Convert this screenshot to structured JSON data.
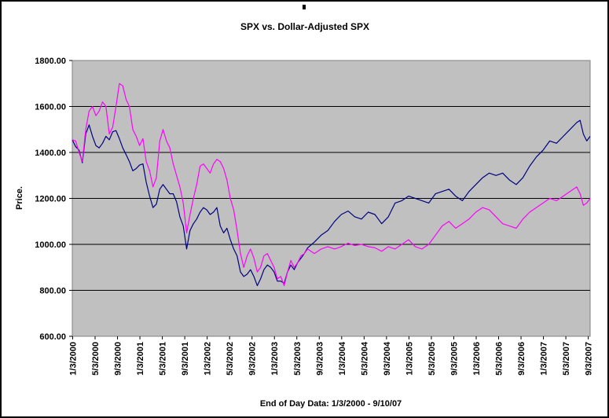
{
  "chart_data": {
    "type": "line",
    "title": "SPX vs. Dollar-Adjusted SPX",
    "xlabel": "End of Day Data: 1/3/2000 - 9/10/07",
    "ylabel": "Price.",
    "ylim": [
      600,
      1800
    ],
    "grid": true,
    "legend": "none",
    "y_ticks": [
      "600.00",
      "800.00",
      "1000.00",
      "1200.00",
      "1400.00",
      "1600.00",
      "1800.00"
    ],
    "x_ticks": [
      "1/3/2000",
      "5/3/2000",
      "9/3/2000",
      "1/3/2001",
      "5/3/2001",
      "9/3/2001",
      "1/3/2002",
      "5/3/2002",
      "9/3/2002",
      "1/3/2003",
      "5/3/2003",
      "9/3/2003",
      "1/3/2004",
      "5/3/2004",
      "9/3/2004",
      "1/3/2005",
      "5/3/2005",
      "9/3/2005",
      "1/3/2006",
      "5/3/2006",
      "9/3/2006",
      "1/3/2007",
      "5/3/2007",
      "9/3/2007"
    ],
    "colors": {
      "plot_bg": "#c0c0c0",
      "grid": "#000000"
    },
    "series": [
      {
        "color": "#000080",
        "x": [
          2000.0,
          2000.05,
          2000.1,
          2000.15,
          2000.2,
          2000.25,
          2000.3,
          2000.35,
          2000.4,
          2000.45,
          2000.5,
          2000.55,
          2000.6,
          2000.65,
          2000.7,
          2000.75,
          2000.8,
          2000.85,
          2000.9,
          2000.95,
          2001.0,
          2001.05,
          2001.1,
          2001.15,
          2001.2,
          2001.25,
          2001.3,
          2001.35,
          2001.4,
          2001.45,
          2001.5,
          2001.55,
          2001.6,
          2001.65,
          2001.7,
          2001.75,
          2001.8,
          2001.85,
          2001.9,
          2001.95,
          2002.0,
          2002.05,
          2002.1,
          2002.15,
          2002.2,
          2002.25,
          2002.3,
          2002.35,
          2002.4,
          2002.45,
          2002.5,
          2002.55,
          2002.6,
          2002.65,
          2002.7,
          2002.75,
          2002.8,
          2002.85,
          2002.9,
          2002.95,
          2003.0,
          2003.05,
          2003.1,
          2003.15,
          2003.2,
          2003.25,
          2003.3,
          2003.35,
          2003.4,
          2003.45,
          2003.5,
          2003.6,
          2003.7,
          2003.8,
          2003.9,
          2004.0,
          2004.1,
          2004.2,
          2004.3,
          2004.4,
          2004.5,
          2004.6,
          2004.7,
          2004.8,
          2004.9,
          2005.0,
          2005.1,
          2005.2,
          2005.3,
          2005.4,
          2005.5,
          2005.6,
          2005.7,
          2005.8,
          2005.9,
          2006.0,
          2006.1,
          2006.2,
          2006.3,
          2006.4,
          2006.5,
          2006.6,
          2006.7,
          2006.8,
          2006.9,
          2007.0,
          2007.1,
          2007.2,
          2007.3,
          2007.4,
          2007.5,
          2007.55,
          2007.6,
          2007.65,
          2007.7
        ],
        "y": [
          1455,
          1425,
          1410,
          1355,
          1480,
          1520,
          1470,
          1430,
          1420,
          1440,
          1470,
          1455,
          1490,
          1495,
          1460,
          1420,
          1390,
          1360,
          1320,
          1330,
          1345,
          1350,
          1270,
          1210,
          1160,
          1175,
          1240,
          1260,
          1240,
          1220,
          1220,
          1185,
          1120,
          1080,
          980,
          1060,
          1090,
          1110,
          1140,
          1160,
          1150,
          1130,
          1140,
          1160,
          1080,
          1050,
          1070,
          1020,
          980,
          950,
          880,
          860,
          870,
          890,
          860,
          820,
          850,
          890,
          910,
          900,
          880,
          840,
          840,
          830,
          880,
          910,
          890,
          920,
          940,
          960,
          985,
          1010,
          1040,
          1060,
          1100,
          1130,
          1145,
          1120,
          1110,
          1140,
          1130,
          1090,
          1120,
          1180,
          1190,
          1210,
          1200,
          1190,
          1180,
          1220,
          1230,
          1240,
          1210,
          1190,
          1230,
          1260,
          1290,
          1310,
          1300,
          1310,
          1280,
          1260,
          1290,
          1340,
          1380,
          1410,
          1450,
          1440,
          1470,
          1500,
          1530,
          1540,
          1480,
          1450,
          1470
        ]
      },
      {
        "color": "#ff00ff",
        "x": [
          2000.0,
          2000.05,
          2000.1,
          2000.15,
          2000.2,
          2000.25,
          2000.3,
          2000.35,
          2000.4,
          2000.45,
          2000.5,
          2000.55,
          2000.6,
          2000.65,
          2000.7,
          2000.75,
          2000.8,
          2000.85,
          2000.9,
          2000.95,
          2001.0,
          2001.05,
          2001.1,
          2001.15,
          2001.2,
          2001.25,
          2001.3,
          2001.35,
          2001.4,
          2001.45,
          2001.5,
          2001.55,
          2001.6,
          2001.65,
          2001.7,
          2001.75,
          2001.8,
          2001.85,
          2001.9,
          2001.95,
          2002.0,
          2002.05,
          2002.1,
          2002.15,
          2002.2,
          2002.25,
          2002.3,
          2002.35,
          2002.4,
          2002.45,
          2002.5,
          2002.55,
          2002.6,
          2002.65,
          2002.7,
          2002.75,
          2002.8,
          2002.85,
          2002.9,
          2002.95,
          2003.0,
          2003.05,
          2003.1,
          2003.15,
          2003.2,
          2003.25,
          2003.3,
          2003.35,
          2003.4,
          2003.45,
          2003.5,
          2003.6,
          2003.7,
          2003.8,
          2003.9,
          2004.0,
          2004.1,
          2004.2,
          2004.3,
          2004.4,
          2004.5,
          2004.6,
          2004.7,
          2004.8,
          2004.9,
          2005.0,
          2005.1,
          2005.2,
          2005.3,
          2005.4,
          2005.5,
          2005.6,
          2005.7,
          2005.8,
          2005.9,
          2006.0,
          2006.1,
          2006.2,
          2006.3,
          2006.4,
          2006.5,
          2006.6,
          2006.7,
          2006.8,
          2006.9,
          2007.0,
          2007.1,
          2007.2,
          2007.3,
          2007.4,
          2007.5,
          2007.55,
          2007.6,
          2007.65,
          2007.7
        ],
        "y": [
          1455,
          1450,
          1400,
          1360,
          1500,
          1580,
          1600,
          1560,
          1580,
          1620,
          1600,
          1480,
          1510,
          1600,
          1700,
          1690,
          1630,
          1600,
          1500,
          1470,
          1430,
          1460,
          1360,
          1320,
          1250,
          1290,
          1450,
          1500,
          1450,
          1420,
          1350,
          1300,
          1250,
          1180,
          1050,
          1130,
          1200,
          1260,
          1340,
          1350,
          1330,
          1310,
          1350,
          1370,
          1360,
          1330,
          1280,
          1200,
          1150,
          1060,
          960,
          900,
          950,
          980,
          940,
          880,
          900,
          950,
          960,
          930,
          900,
          850,
          860,
          820,
          880,
          930,
          900,
          920,
          950,
          960,
          980,
          960,
          980,
          990,
          980,
          990,
          1005,
          995,
          1000,
          990,
          985,
          970,
          990,
          980,
          1000,
          1020,
          990,
          980,
          1000,
          1040,
          1080,
          1100,
          1070,
          1090,
          1110,
          1140,
          1160,
          1150,
          1120,
          1090,
          1080,
          1070,
          1110,
          1140,
          1160,
          1180,
          1200,
          1190,
          1210,
          1230,
          1250,
          1220,
          1170,
          1180,
          1200
        ]
      }
    ]
  }
}
